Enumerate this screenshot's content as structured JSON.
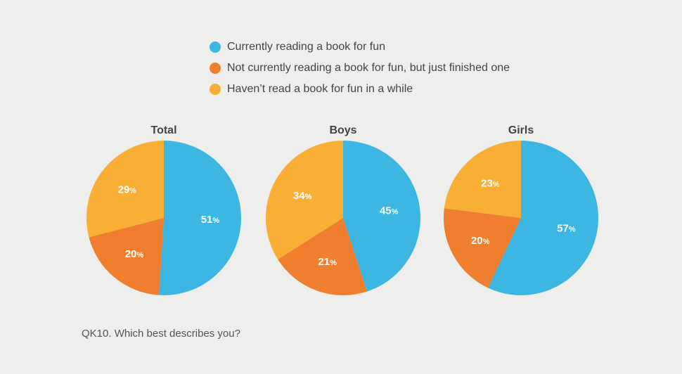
{
  "legend": {
    "items": [
      {
        "label": "Currently reading a book for fun",
        "color": "#3db6e1"
      },
      {
        "label": "Not currently reading a book for fun, but just finished one",
        "color": "#ef7e2e"
      },
      {
        "label": "Haven’t read a book for fun in  a while",
        "color": "#f9ae35"
      }
    ]
  },
  "footnote": "QK10. Which best describes you?",
  "chart_data": {
    "type": "pie",
    "categories": [
      "Currently reading a book for fun",
      "Not currently reading a book for fun, but just finished one",
      "Haven’t read a book for fun in  a while"
    ],
    "colors": [
      "#3db6e1",
      "#ef7e2e",
      "#f9ae35"
    ],
    "charts": [
      {
        "title": "Total",
        "values": [
          51,
          20,
          29
        ]
      },
      {
        "title": "Boys",
        "values": [
          45,
          21,
          34
        ]
      },
      {
        "title": "Girls",
        "values": [
          57,
          20,
          23
        ]
      }
    ],
    "value_suffix": "%",
    "legend_position": "top"
  }
}
